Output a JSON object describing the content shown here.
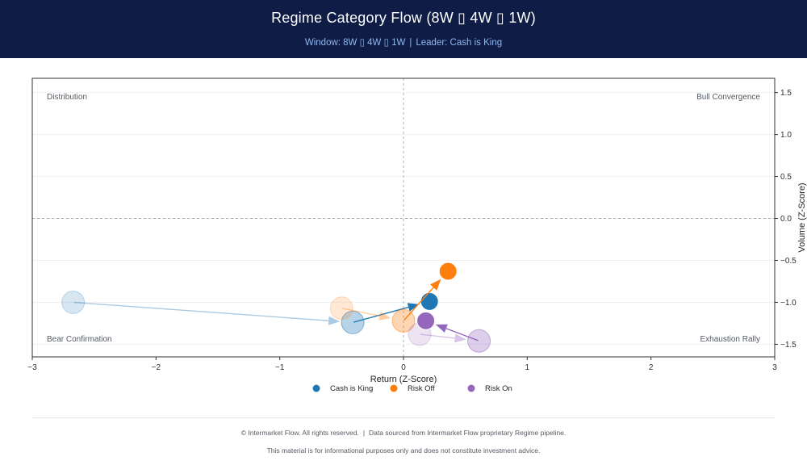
{
  "header": {
    "title": "Regime Category Flow (8W ▯ 4W ▯ 1W)",
    "window_label": "Window: 8W ▯ 4W ▯ 1W",
    "separator": "|",
    "leader_label": "Leader: Cash is King"
  },
  "footer": {
    "copyright": "© Intermarket Flow. All rights reserved.",
    "separator": "|",
    "source": "Data sourced from Intermarket Flow proprietary Regime pipeline.",
    "disclaimer": "This material is for informational purposes only and does not constitute investment advice."
  },
  "chart_data": {
    "type": "scatter",
    "title": "Regime Category Flow (8W ▯ 4W ▯ 1W)",
    "xlabel": "Return (Z-Score)",
    "ylabel": "Volume (Z-Score)",
    "xlim": [
      -3.0,
      3.0
    ],
    "ylim": [
      -1.65,
      1.67
    ],
    "xticks": [
      -3,
      -2,
      -1,
      0,
      1,
      2,
      3
    ],
    "xtick_labels": [
      "−3",
      "−2",
      "−1",
      "0",
      "1",
      "2",
      "3"
    ],
    "yticks": [
      1.5,
      1.0,
      0.5,
      0.0,
      -0.5,
      -1.0,
      -1.5
    ],
    "ytick_labels": [
      "1.5",
      "1.0",
      "0.5",
      "0.0",
      "−0.5",
      "−1.0",
      "−1.5"
    ],
    "grid": true,
    "y_axis_side": "right",
    "legend_position": "bottom-center",
    "quadrant_labels": {
      "top_left": "Distribution",
      "top_right": "Bull Convergence",
      "bottom_left": "Bear Confirmation",
      "bottom_right": "Exhaustion Rally"
    },
    "series": [
      {
        "name": "Cash is King",
        "color": "#1f77b4",
        "points": [
          {
            "period": "8W",
            "x": -2.67,
            "y": -1.0
          },
          {
            "period": "4W",
            "x": -0.41,
            "y": -1.24
          },
          {
            "period": "1W",
            "x": 0.21,
            "y": -0.99
          }
        ]
      },
      {
        "name": "Risk Off",
        "color": "#ff7f0e",
        "points": [
          {
            "period": "8W",
            "x": -0.5,
            "y": -1.07
          },
          {
            "period": "4W",
            "x": 0.0,
            "y": -1.22
          },
          {
            "period": "1W",
            "x": 0.36,
            "y": -0.63
          }
        ]
      },
      {
        "name": "Risk On",
        "color": "#9467bd",
        "points": [
          {
            "period": "8W",
            "x": 0.13,
            "y": -1.38
          },
          {
            "period": "4W",
            "x": 0.61,
            "y": -1.46
          },
          {
            "period": "1W",
            "x": 0.18,
            "y": -1.22
          }
        ]
      }
    ]
  }
}
